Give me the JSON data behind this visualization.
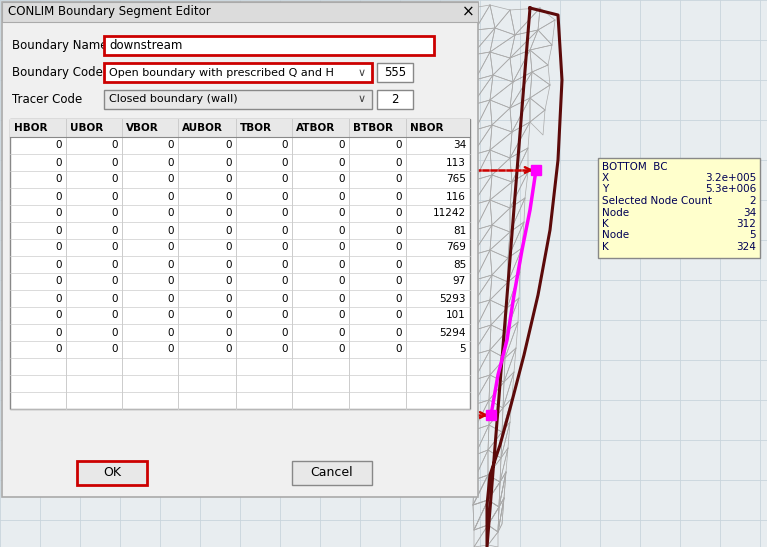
{
  "title": "CONLIM Boundary Segment Editor",
  "boundary_name": "downstream",
  "boundary_code_text": "Open boundary with prescribed Q and H",
  "boundary_code_val": "555",
  "tracer_code_text": "Closed boundary (wall)",
  "tracer_code_val": "2",
  "columns": [
    "HBOR",
    "UBOR",
    "VBOR",
    "AUBOR",
    "TBOR",
    "ATBOR",
    "BTBOR",
    "NBOR"
  ],
  "rows": [
    [
      0,
      0,
      0,
      0,
      0,
      0,
      0,
      34
    ],
    [
      0,
      0,
      0,
      0,
      0,
      0,
      0,
      113
    ],
    [
      0,
      0,
      0,
      0,
      0,
      0,
      0,
      765
    ],
    [
      0,
      0,
      0,
      0,
      0,
      0,
      0,
      116
    ],
    [
      0,
      0,
      0,
      0,
      0,
      0,
      0,
      11242
    ],
    [
      0,
      0,
      0,
      0,
      0,
      0,
      0,
      81
    ],
    [
      0,
      0,
      0,
      0,
      0,
      0,
      0,
      769
    ],
    [
      0,
      0,
      0,
      0,
      0,
      0,
      0,
      85
    ],
    [
      0,
      0,
      0,
      0,
      0,
      0,
      0,
      97
    ],
    [
      0,
      0,
      0,
      0,
      0,
      0,
      0,
      5293
    ],
    [
      0,
      0,
      0,
      0,
      0,
      0,
      0,
      101
    ],
    [
      0,
      0,
      0,
      0,
      0,
      0,
      0,
      5294
    ],
    [
      0,
      0,
      0,
      0,
      0,
      0,
      0,
      5
    ]
  ],
  "tooltip_title": "BOTTOM  BC",
  "tooltip_x": "3.2e+005",
  "tooltip_y": "5.3e+006",
  "tooltip_snc": "2",
  "tooltip_node1": "34",
  "tooltip_k1": "312",
  "tooltip_node2": "5",
  "tooltip_k2": "324",
  "dialog_bg": "#f0f0f0",
  "dialog_border": "#aaaaaa",
  "title_bar_bg": "#e8e8e8",
  "input_bg": "#ffffff",
  "red_border": "#cc0000",
  "table_bg": "#ffffff",
  "table_header_bg": "#e8e8e8",
  "table_line_color": "#cccccc",
  "btn_bg": "#e0e0e0",
  "canvas_bg": "#e8edf0",
  "grid_color": "#c8d4dc",
  "mesh_color": "#aaaaaa",
  "boundary_color": "#5c0a0a",
  "magenta_color": "#ff00ff",
  "dashed_red": "#cc0000",
  "tooltip_bg": "#ffffcc",
  "tooltip_border": "#888888"
}
